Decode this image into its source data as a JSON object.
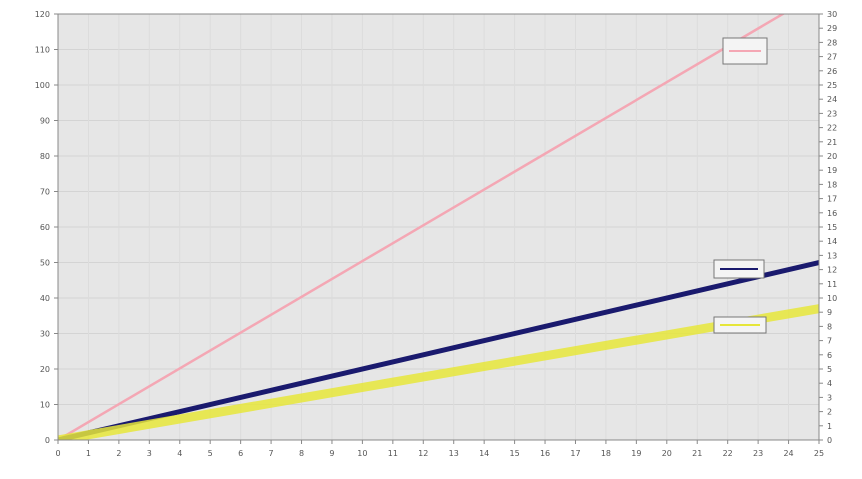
{
  "chart_data": {
    "type": "line",
    "title": "",
    "xlabel": "",
    "ylabel": "",
    "x": [
      0,
      25
    ],
    "xlim": [
      0,
      25
    ],
    "ylim": [
      0,
      120
    ],
    "y2lim": [
      0,
      30
    ],
    "x_ticks": [
      "0",
      "1",
      "2",
      "3",
      "4",
      "5",
      "6",
      "7",
      "8",
      "9",
      "10",
      "11",
      "12",
      "13",
      "14",
      "15",
      "16",
      "17",
      "18",
      "19",
      "20",
      "21",
      "22",
      "23",
      "24",
      "25"
    ],
    "y_ticks": [
      "0",
      "10",
      "20",
      "30",
      "40",
      "50",
      "60",
      "70",
      "80",
      "90",
      "100",
      "110",
      "120"
    ],
    "y2_ticks": [
      "0",
      "1",
      "2",
      "3",
      "4",
      "5",
      "6",
      "7",
      "8",
      "9",
      "10",
      "11",
      "12",
      "13",
      "14",
      "15",
      "16",
      "17",
      "18",
      "19",
      "20",
      "21",
      "22",
      "23",
      "24",
      "25",
      "26",
      "27",
      "28",
      "29",
      "30"
    ],
    "grid": true,
    "series": [
      {
        "values": [
          0,
          126
        ],
        "color": "#f4a7b4",
        "axis": "left"
      },
      {
        "values": [
          0,
          50
        ],
        "color": "#1a1a6e",
        "axis": "left"
      },
      {
        "values": [
          0,
          37
        ],
        "color": "#e6e63a",
        "axis": "left"
      }
    ]
  },
  "colors": {
    "plot_bg": "#e6e6e6",
    "frame": "#888888"
  }
}
